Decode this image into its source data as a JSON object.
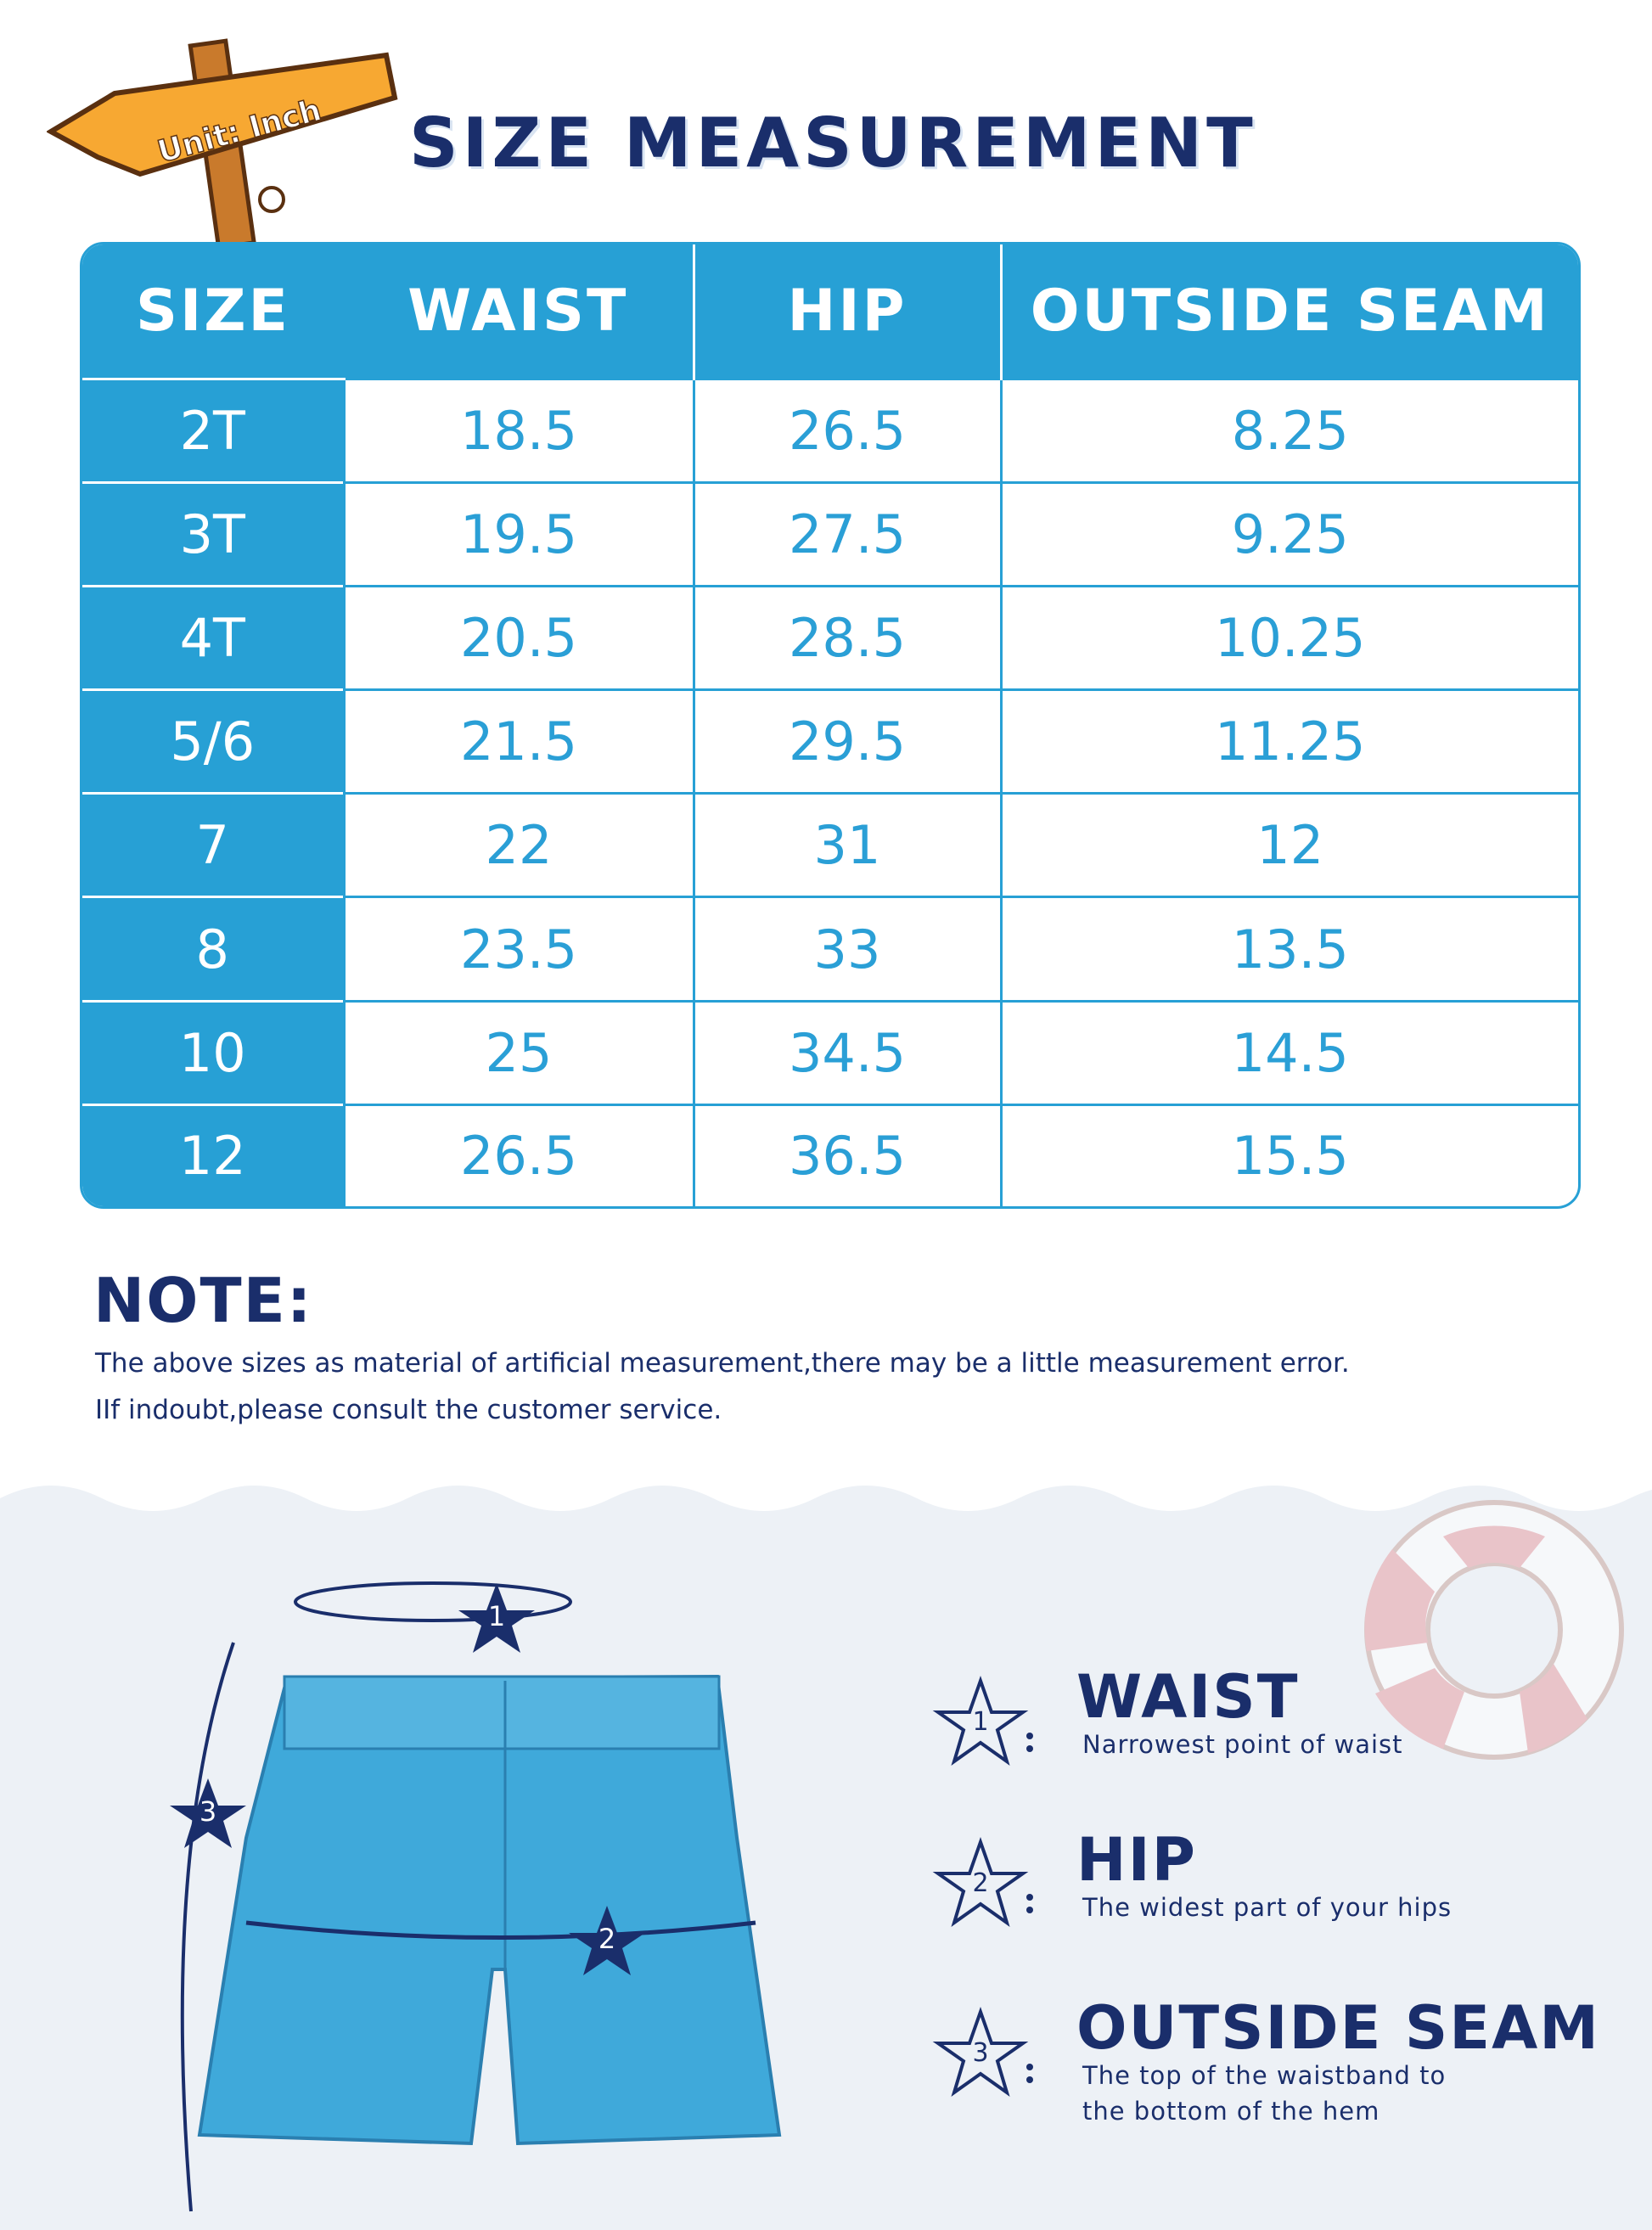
{
  "sign": {
    "text": "Unit: Inch"
  },
  "title": "SIZE MEASUREMENT",
  "table": {
    "headers": [
      "SIZE",
      "WAIST",
      "HIP",
      "OUTSIDE SEAM"
    ],
    "rows": [
      [
        "2T",
        "18.5",
        "26.5",
        "8.25"
      ],
      [
        "3T",
        "19.5",
        "27.5",
        "9.25"
      ],
      [
        "4T",
        "20.5",
        "28.5",
        "10.25"
      ],
      [
        "5/6",
        "21.5",
        "29.5",
        "11.25"
      ],
      [
        "7",
        "22",
        "31",
        "12"
      ],
      [
        "8",
        "23.5",
        "33",
        "13.5"
      ],
      [
        "10",
        "25",
        "34.5",
        "14.5"
      ],
      [
        "12",
        "26.5",
        "36.5",
        "15.5"
      ]
    ]
  },
  "note": {
    "heading": "NOTE:",
    "lines": [
      "The above sizes as material of artificial measurement,there may be a little measurement error.",
      "IIf indoubt,please consult the customer service."
    ]
  },
  "diagram": {
    "markers": [
      "1",
      "2",
      "3"
    ]
  },
  "legend": [
    {
      "num": "1",
      "title": "WAIST",
      "desc": [
        "Narrowest point of waist"
      ]
    },
    {
      "num": "2",
      "title": "HIP",
      "desc": [
        "The widest part of your hips"
      ]
    },
    {
      "num": "3",
      "title": "OUTSIDE SEAM",
      "desc": [
        "The top of the waistband to",
        "the bottom of the hem"
      ]
    }
  ],
  "colors": {
    "accent": "#27a0d5",
    "navy": "#1a2e6b",
    "background_lower": "#edf1f6",
    "sign": "#f7a832"
  }
}
